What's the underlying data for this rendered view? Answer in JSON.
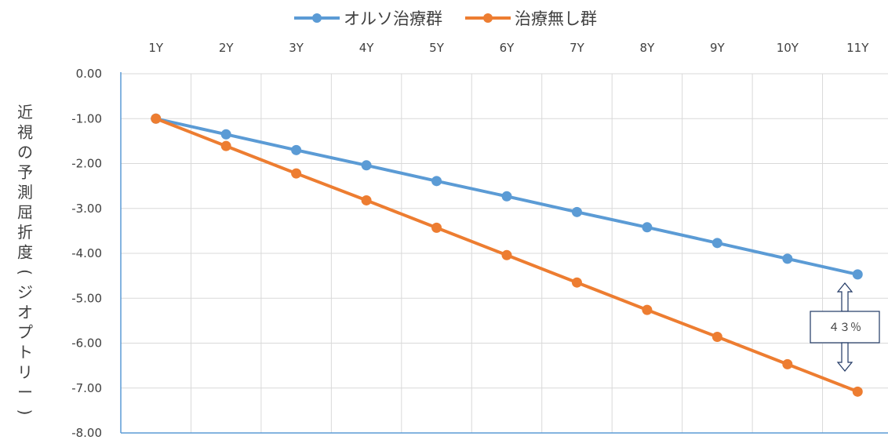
{
  "chart_data": {
    "type": "line",
    "categories": [
      "1Y",
      "2Y",
      "3Y",
      "4Y",
      "5Y",
      "6Y",
      "7Y",
      "8Y",
      "9Y",
      "10Y",
      "11Y"
    ],
    "series": [
      {
        "name": "オルソ治療群",
        "color": "#5b9bd5",
        "values": [
          -1.0,
          -1.35,
          -1.7,
          -2.04,
          -2.39,
          -2.73,
          -3.08,
          -3.42,
          -3.77,
          -4.12,
          -4.47
        ]
      },
      {
        "name": "治療無し群",
        "color": "#ed7d31",
        "values": [
          -1.0,
          -1.61,
          -2.22,
          -2.82,
          -3.43,
          -4.04,
          -4.65,
          -5.26,
          -5.86,
          -6.47,
          -7.08
        ]
      }
    ],
    "xlabel": "",
    "ylabel": "近視の予測屈折度(ジオプトリー)",
    "ylim": [
      -8.0,
      0.0
    ],
    "y_ticks": [
      "0.00",
      "-1.00",
      "-2.00",
      "-3.00",
      "-4.00",
      "-5.00",
      "-6.00",
      "-7.00",
      "-8.00"
    ],
    "x_axis_position": "top",
    "grid": true,
    "legend_position": "top",
    "annotation": {
      "text": "４３％"
    },
    "axis_color": "#5b9bd5",
    "grid_color": "#d9d9d9"
  }
}
